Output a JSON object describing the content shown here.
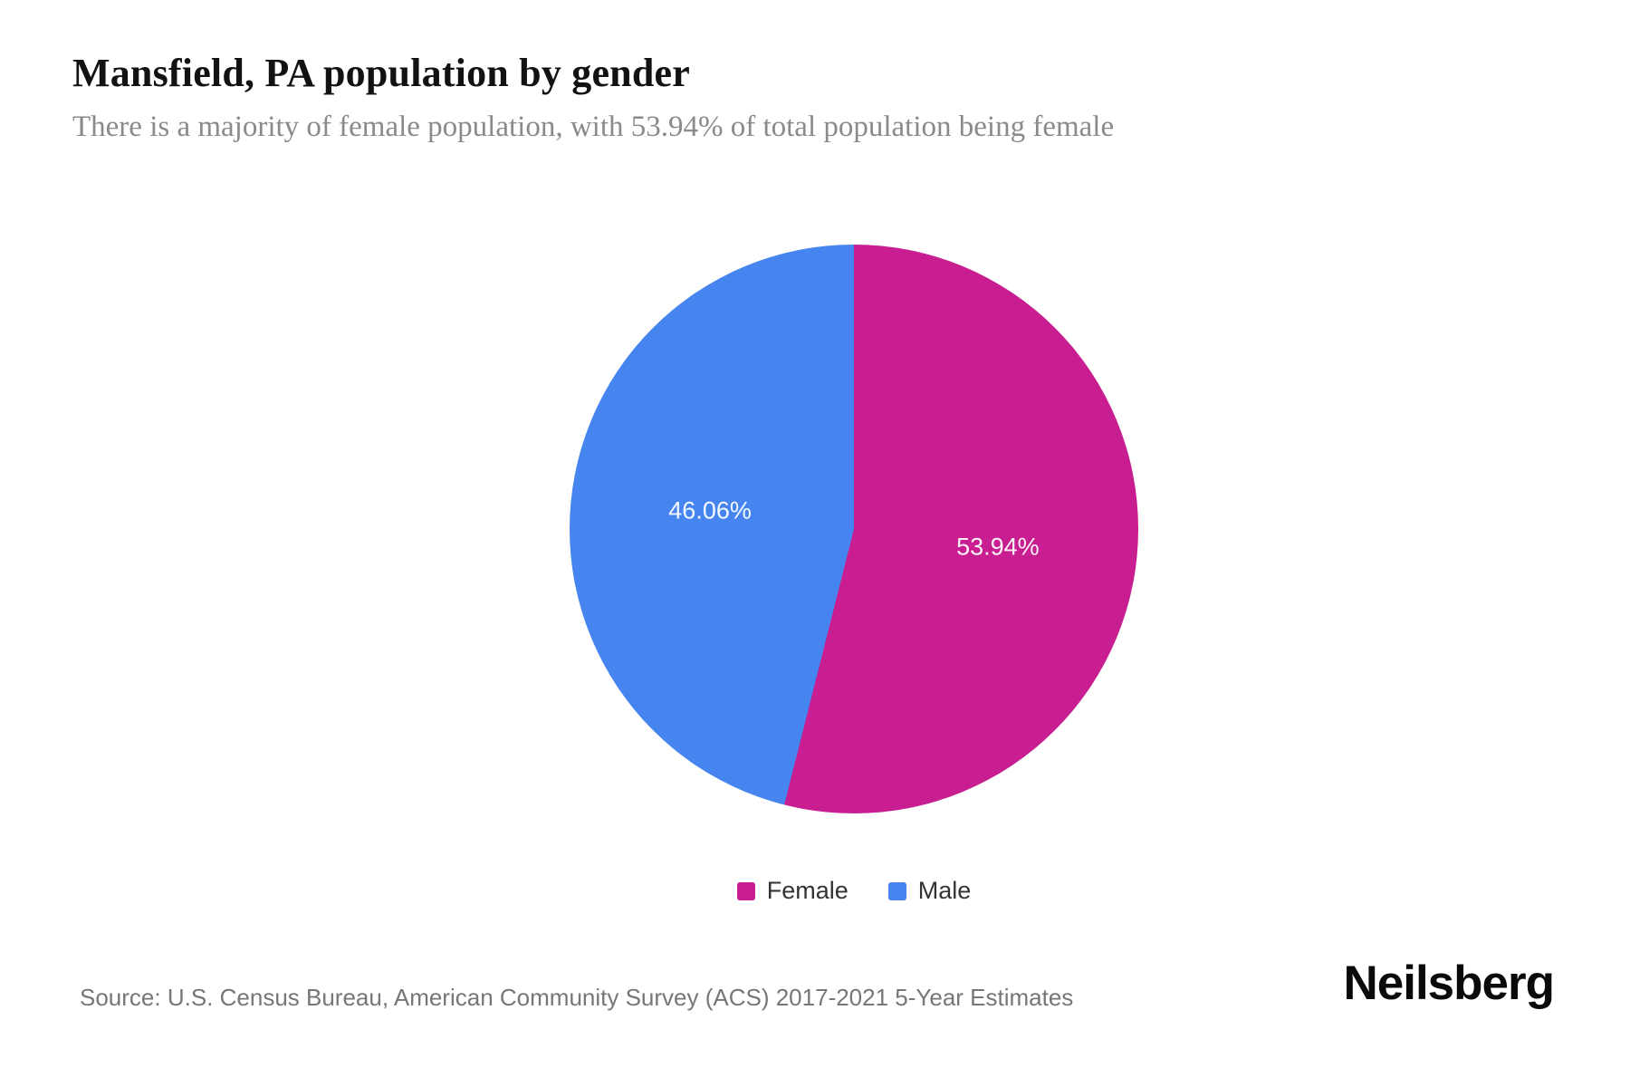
{
  "header": {
    "title": "Mansfield, PA population by gender",
    "subtitle": "There is a majority of female population, with 53.94% of total population being female"
  },
  "chart_data": {
    "type": "pie",
    "title": "Mansfield, PA population by gender",
    "subtitle": "There is a majority of female population, with 53.94% of total population being female",
    "categories": [
      "Female",
      "Male"
    ],
    "values": [
      53.94,
      46.06
    ],
    "slice_labels": [
      "53.94%",
      "46.06%"
    ],
    "colors": [
      "#C81E91",
      "#4685F0"
    ],
    "start_angle_deg": 0,
    "direction": "clockwise",
    "legend_position": "bottom",
    "label_color": "#ffffff"
  },
  "footer": {
    "source": "Source: U.S. Census Bureau, American Community Survey (ACS) 2017-2021 5-Year Estimates",
    "brand": "Neilsberg"
  }
}
